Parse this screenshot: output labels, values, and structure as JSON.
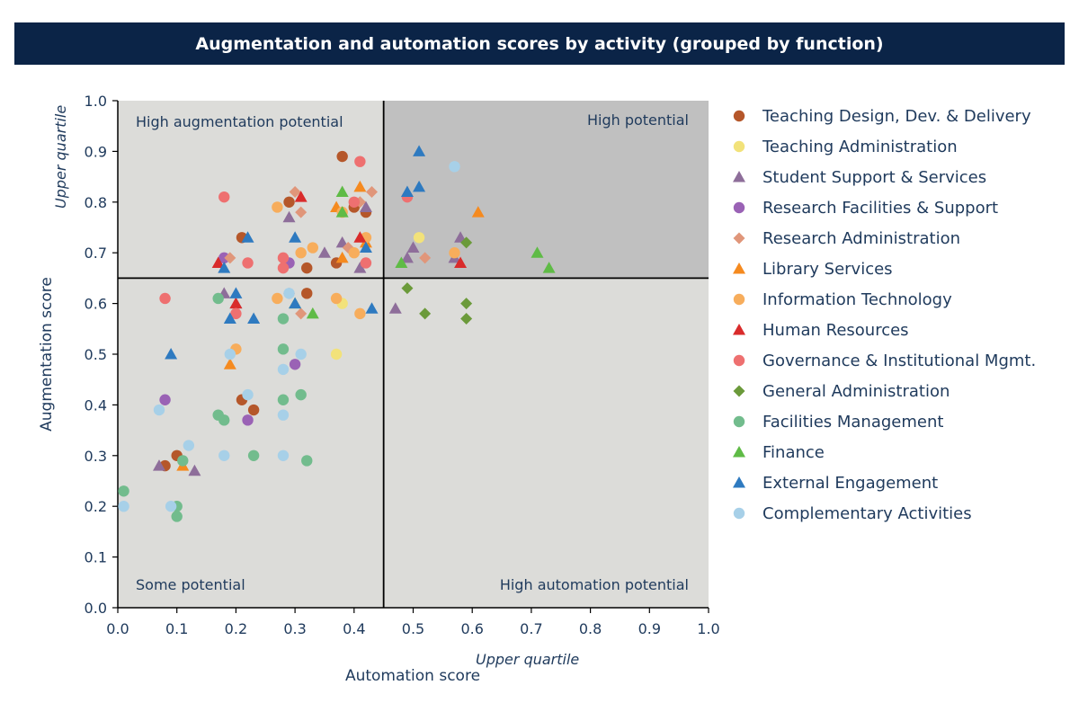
{
  "chart_data": {
    "type": "scatter",
    "title": "Augmentation and automation scores by activity (grouped by function)",
    "xlabel": "Automation score",
    "ylabel": "Augmentation score",
    "x_quartile_label": "Upper quartile",
    "y_quartile_label": "Upper quartile",
    "xlim": [
      0,
      1
    ],
    "ylim": [
      0,
      1
    ],
    "x_ticks": [
      "0.0",
      "0.1",
      "0.2",
      "0.3",
      "0.4",
      "0.5",
      "0.6",
      "0.7",
      "0.8",
      "0.9",
      "1.0"
    ],
    "y_ticks": [
      "0.0",
      "0.1",
      "0.2",
      "0.3",
      "0.4",
      "0.5",
      "0.6",
      "0.7",
      "0.8",
      "0.9",
      "1.0"
    ],
    "thresholds": {
      "x": 0.45,
      "y": 0.65
    },
    "quadrants": {
      "top_left": "High augmentation potential",
      "top_right": "High potential",
      "bottom_left": "Some potential",
      "bottom_right": "High automation potential"
    },
    "quadrant_colors": {
      "light": "#dcdcd9",
      "dark": "#c0c0c0"
    },
    "grid": false,
    "legend_position": "right",
    "series": [
      {
        "name": "Teaching Design, Dev. & Delivery",
        "marker": "circle",
        "color": "#b5572a",
        "points": [
          [
            0.38,
            0.89
          ],
          [
            0.29,
            0.8
          ],
          [
            0.4,
            0.79
          ],
          [
            0.42,
            0.78
          ],
          [
            0.21,
            0.73
          ],
          [
            0.32,
            0.67
          ],
          [
            0.37,
            0.68
          ],
          [
            0.32,
            0.62
          ],
          [
            0.21,
            0.41
          ],
          [
            0.23,
            0.39
          ],
          [
            0.1,
            0.3
          ],
          [
            0.08,
            0.28
          ]
        ]
      },
      {
        "name": "Teaching Administration",
        "marker": "circle",
        "color": "#f2e27a",
        "points": [
          [
            0.51,
            0.73
          ],
          [
            0.38,
            0.6
          ],
          [
            0.37,
            0.5
          ]
        ]
      },
      {
        "name": "Student Support & Services",
        "marker": "triangle",
        "color": "#8e6e9a",
        "points": [
          [
            0.29,
            0.77
          ],
          [
            0.35,
            0.7
          ],
          [
            0.38,
            0.72
          ],
          [
            0.41,
            0.67
          ],
          [
            0.49,
            0.69
          ],
          [
            0.5,
            0.71
          ],
          [
            0.57,
            0.69
          ],
          [
            0.58,
            0.73
          ],
          [
            0.47,
            0.59
          ],
          [
            0.18,
            0.62
          ],
          [
            0.2,
            0.6
          ],
          [
            0.07,
            0.28
          ],
          [
            0.13,
            0.27
          ],
          [
            0.42,
            0.79
          ]
        ]
      },
      {
        "name": "Research Facilities & Support",
        "marker": "circle",
        "color": "#9a62b5",
        "points": [
          [
            0.18,
            0.69
          ],
          [
            0.29,
            0.68
          ],
          [
            0.08,
            0.41
          ],
          [
            0.22,
            0.37
          ],
          [
            0.3,
            0.48
          ]
        ]
      },
      {
        "name": "Research Administration",
        "marker": "diamond",
        "color": "#e0967a",
        "points": [
          [
            0.3,
            0.82
          ],
          [
            0.31,
            0.78
          ],
          [
            0.43,
            0.82
          ],
          [
            0.19,
            0.69
          ],
          [
            0.29,
            0.62
          ],
          [
            0.31,
            0.58
          ],
          [
            0.52,
            0.69
          ],
          [
            0.39,
            0.71
          ],
          [
            0.41,
            0.8
          ]
        ]
      },
      {
        "name": "Library Services",
        "marker": "triangle",
        "color": "#f58a1f",
        "points": [
          [
            0.41,
            0.83
          ],
          [
            0.37,
            0.79
          ],
          [
            0.61,
            0.78
          ],
          [
            0.38,
            0.69
          ],
          [
            0.19,
            0.48
          ],
          [
            0.11,
            0.28
          ],
          [
            0.42,
            0.72
          ]
        ]
      },
      {
        "name": "Information Technology",
        "marker": "circle",
        "color": "#f7ad5c",
        "points": [
          [
            0.27,
            0.79
          ],
          [
            0.33,
            0.71
          ],
          [
            0.42,
            0.73
          ],
          [
            0.4,
            0.7
          ],
          [
            0.31,
            0.7
          ],
          [
            0.27,
            0.61
          ],
          [
            0.37,
            0.61
          ],
          [
            0.41,
            0.58
          ],
          [
            0.2,
            0.51
          ],
          [
            0.57,
            0.7
          ],
          [
            0.38,
            0.78
          ]
        ]
      },
      {
        "name": "Human Resources",
        "marker": "triangle",
        "color": "#d92b2b",
        "points": [
          [
            0.31,
            0.81
          ],
          [
            0.17,
            0.68
          ],
          [
            0.58,
            0.68
          ],
          [
            0.2,
            0.6
          ],
          [
            0.41,
            0.73
          ]
        ]
      },
      {
        "name": "Governance & Institutional Mgmt.",
        "marker": "circle",
        "color": "#ee7070",
        "points": [
          [
            0.18,
            0.81
          ],
          [
            0.41,
            0.88
          ],
          [
            0.49,
            0.81
          ],
          [
            0.22,
            0.68
          ],
          [
            0.28,
            0.69
          ],
          [
            0.42,
            0.68
          ],
          [
            0.08,
            0.61
          ],
          [
            0.2,
            0.58
          ],
          [
            0.4,
            0.8
          ],
          [
            0.28,
            0.67
          ]
        ]
      },
      {
        "name": "General Administration",
        "marker": "diamond",
        "color": "#6b9a3a",
        "points": [
          [
            0.49,
            0.63
          ],
          [
            0.52,
            0.58
          ],
          [
            0.59,
            0.6
          ],
          [
            0.59,
            0.57
          ],
          [
            0.59,
            0.72
          ]
        ]
      },
      {
        "name": "Facilities Management",
        "marker": "circle",
        "color": "#72bc8d",
        "points": [
          [
            0.17,
            0.61
          ],
          [
            0.28,
            0.57
          ],
          [
            0.28,
            0.51
          ],
          [
            0.17,
            0.38
          ],
          [
            0.18,
            0.37
          ],
          [
            0.28,
            0.41
          ],
          [
            0.31,
            0.42
          ],
          [
            0.23,
            0.3
          ],
          [
            0.32,
            0.29
          ],
          [
            0.01,
            0.23
          ],
          [
            0.1,
            0.2
          ],
          [
            0.1,
            0.18
          ],
          [
            0.11,
            0.29
          ]
        ]
      },
      {
        "name": "Finance",
        "marker": "triangle",
        "color": "#5fbb46",
        "points": [
          [
            0.38,
            0.82
          ],
          [
            0.38,
            0.78
          ],
          [
            0.48,
            0.68
          ],
          [
            0.71,
            0.7
          ],
          [
            0.73,
            0.67
          ],
          [
            0.33,
            0.58
          ],
          [
            0.3,
            0.6
          ]
        ]
      },
      {
        "name": "External Engagement",
        "marker": "triangle",
        "color": "#2e7ac0",
        "points": [
          [
            0.51,
            0.9
          ],
          [
            0.51,
            0.83
          ],
          [
            0.49,
            0.82
          ],
          [
            0.3,
            0.73
          ],
          [
            0.18,
            0.67
          ],
          [
            0.22,
            0.73
          ],
          [
            0.2,
            0.62
          ],
          [
            0.19,
            0.57
          ],
          [
            0.23,
            0.57
          ],
          [
            0.3,
            0.6
          ],
          [
            0.43,
            0.59
          ],
          [
            0.09,
            0.5
          ],
          [
            0.42,
            0.71
          ]
        ]
      },
      {
        "name": "Complementary Activities",
        "marker": "circle",
        "color": "#a7d0e8",
        "points": [
          [
            0.57,
            0.87
          ],
          [
            0.29,
            0.62
          ],
          [
            0.07,
            0.39
          ],
          [
            0.19,
            0.5
          ],
          [
            0.22,
            0.42
          ],
          [
            0.28,
            0.38
          ],
          [
            0.28,
            0.47
          ],
          [
            0.31,
            0.5
          ],
          [
            0.12,
            0.32
          ],
          [
            0.18,
            0.3
          ],
          [
            0.28,
            0.3
          ],
          [
            0.09,
            0.2
          ],
          [
            0.01,
            0.2
          ]
        ]
      }
    ]
  }
}
